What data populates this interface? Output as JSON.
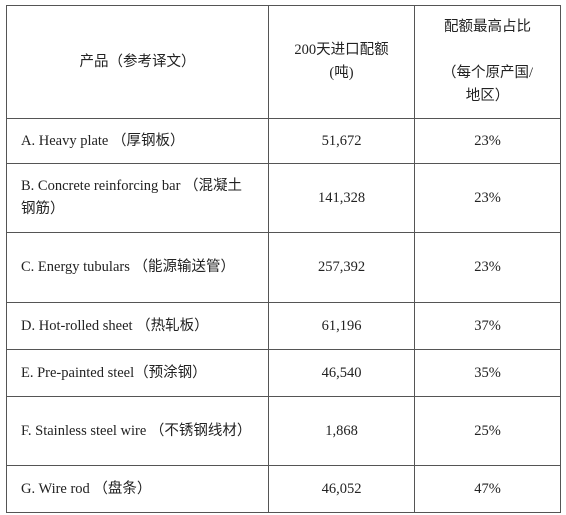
{
  "table": {
    "header": [
      [
        "产品（参考译文）"
      ],
      [
        "200天进口配额",
        "(吨)"
      ],
      [
        "配额最高占比",
        "（每个原产国/",
        "地区）"
      ]
    ],
    "rows": [
      [
        "A. Heavy plate （厚钢板）",
        "51,672",
        "23%"
      ],
      [
        "B. Concrete reinforcing  bar （混凝土钢筋）",
        "141,328",
        "23%"
      ],
      [
        "C. Energy tubulars （能源输送管）",
        "257,392",
        "23%"
      ],
      [
        "D. Hot-rolled sheet （热轧板）",
        "61,196",
        "37%"
      ],
      [
        "E. Pre-painted steel（预涂钢）",
        "46,540",
        "35%"
      ],
      [
        "F. Stainless steel wire （不锈钢线材）",
        "1,868",
        "25%"
      ],
      [
        "G. Wire rod （盘条）",
        "46,052",
        "47%"
      ]
    ]
  }
}
